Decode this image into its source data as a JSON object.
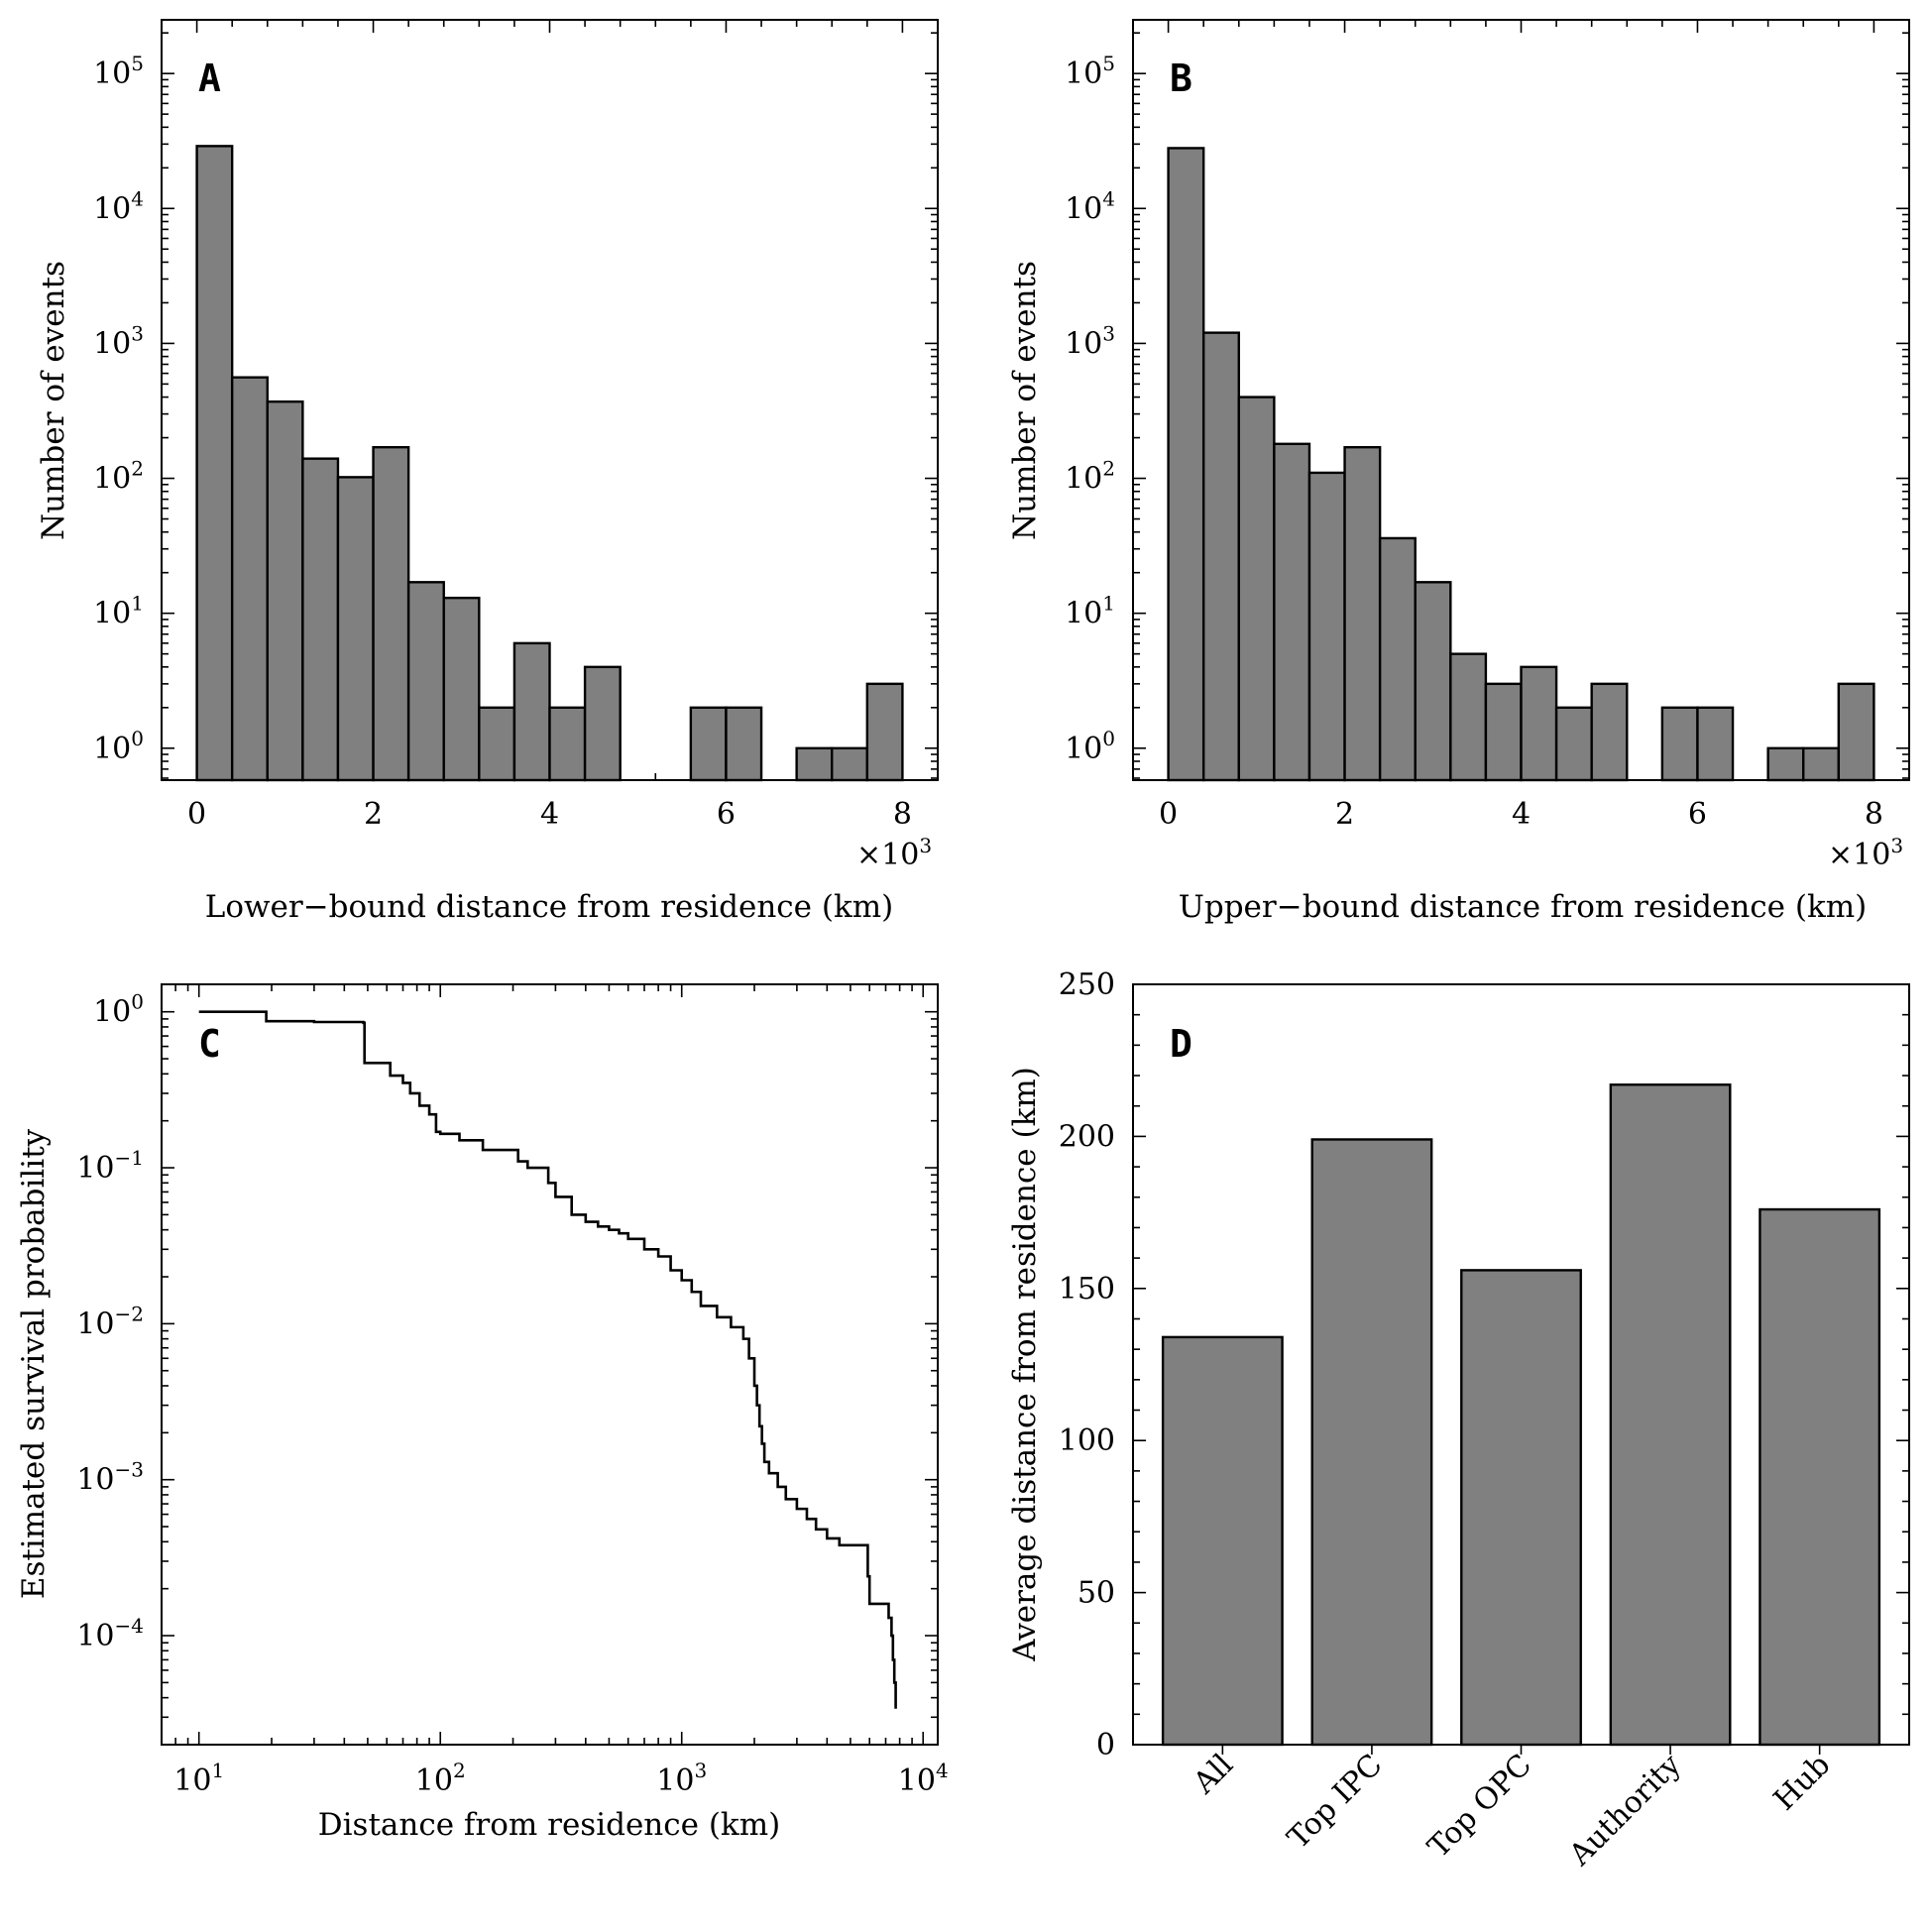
{
  "chart_data": [
    {
      "id": "A",
      "panel_label": "A",
      "type": "bar",
      "xlabel": "Lower−bound distance from residence (km)",
      "ylabel": "Number of events",
      "xscale_label": "×10",
      "xscale_exp": "3",
      "xlim": [
        -0.4,
        8.4
      ],
      "ylim": [
        0.58,
        250000
      ],
      "yscale": "log",
      "xticks": [
        0,
        2,
        4,
        6,
        8
      ],
      "ytick_exps": [
        0,
        1,
        2,
        3,
        4,
        5
      ],
      "bin_width": 0.4,
      "bin_starts": [
        0,
        0.4,
        0.8,
        1.2,
        1.6,
        2.0,
        2.4,
        2.8,
        3.2,
        3.6,
        4.0,
        4.4,
        5.6,
        6.0,
        6.8,
        7.2,
        7.6
      ],
      "values": [
        29000,
        560,
        370,
        140,
        102,
        170,
        17,
        13,
        2,
        6,
        2,
        4,
        2,
        2,
        1,
        1,
        3
      ]
    },
    {
      "id": "B",
      "panel_label": "B",
      "type": "bar",
      "xlabel": "Upper−bound distance from residence (km)",
      "ylabel": "Number of events",
      "xscale_label": "×10",
      "xscale_exp": "3",
      "xlim": [
        -0.4,
        8.4
      ],
      "ylim": [
        0.58,
        250000
      ],
      "yscale": "log",
      "xticks": [
        0,
        2,
        4,
        6,
        8
      ],
      "ytick_exps": [
        0,
        1,
        2,
        3,
        4,
        5
      ],
      "bin_width": 0.4,
      "bin_starts": [
        0,
        0.4,
        0.8,
        1.2,
        1.6,
        2.0,
        2.4,
        2.8,
        3.2,
        3.6,
        4.0,
        4.4,
        4.8,
        5.6,
        6.0,
        6.8,
        7.2,
        7.6
      ],
      "values": [
        28000,
        1200,
        400,
        180,
        110,
        170,
        36,
        17,
        5,
        3,
        4,
        2,
        3,
        2,
        2,
        1,
        1,
        3
      ]
    },
    {
      "id": "C",
      "panel_label": "C",
      "type": "line",
      "xlabel": "Distance from residence (km)",
      "ylabel": "Estimated survival probability",
      "xscale": "log",
      "yscale": "log",
      "xlim": [
        7,
        11500
      ],
      "ylim": [
        2e-05,
        1.5
      ],
      "xtick_exps": [
        1,
        2,
        3,
        4
      ],
      "ytick_exps": [
        0,
        -1,
        -2,
        -3,
        -4
      ],
      "ytick_neg": "−",
      "step": true,
      "x": [
        10,
        19,
        30,
        48,
        48.5,
        62,
        70,
        75,
        82,
        90,
        96,
        100,
        120,
        150,
        210,
        230,
        280,
        300,
        350,
        400,
        450,
        500,
        550,
        600,
        700,
        800,
        900,
        1000,
        1100,
        1200,
        1400,
        1600,
        1800,
        1900,
        2000,
        2050,
        2100,
        2150,
        2200,
        2300,
        2500,
        2700,
        3000,
        3300,
        3600,
        4000,
        4500,
        5000,
        5900,
        6000,
        6500,
        7200,
        7400,
        7500,
        7600,
        7700
      ],
      "y": [
        1.0,
        0.87,
        0.86,
        0.85,
        0.47,
        0.39,
        0.35,
        0.3,
        0.25,
        0.22,
        0.17,
        0.165,
        0.15,
        0.13,
        0.11,
        0.1,
        0.08,
        0.065,
        0.05,
        0.045,
        0.042,
        0.04,
        0.038,
        0.035,
        0.03,
        0.027,
        0.022,
        0.019,
        0.016,
        0.013,
        0.011,
        0.0095,
        0.008,
        0.006,
        0.004,
        0.003,
        0.0022,
        0.0017,
        0.0013,
        0.0011,
        0.0009,
        0.00075,
        0.00065,
        0.00056,
        0.00048,
        0.00042,
        0.00038,
        0.00038,
        0.00024,
        0.00016,
        0.00016,
        0.00013,
        0.0001,
        7e-05,
        5e-05,
        3.4e-05
      ]
    },
    {
      "id": "D",
      "panel_label": "D",
      "type": "bar",
      "xlabel": "",
      "ylabel": "Average distance from residence (km)",
      "ylim": [
        0,
        250
      ],
      "yticks": [
        0,
        50,
        100,
        150,
        200,
        250
      ],
      "categories": [
        "All",
        "Top IPC",
        "Top OPC",
        "Authority",
        "Hub"
      ],
      "values": [
        134,
        199,
        156,
        217,
        176
      ]
    }
  ]
}
